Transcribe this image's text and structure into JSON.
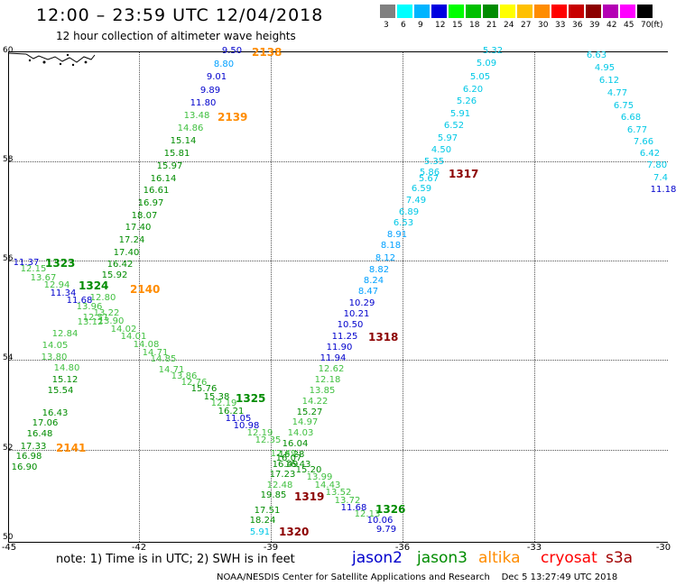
{
  "header": {
    "title": "12:00 – 23:59 UTC 12/04/2018",
    "subtitle": "12 hour collection of altimeter wave heights"
  },
  "legend": {
    "unit": "(ft)",
    "swatches": [
      {
        "label": "3",
        "color": "#808080"
      },
      {
        "label": "6",
        "color": "#00ffff"
      },
      {
        "label": "9",
        "color": "#00b4ff"
      },
      {
        "label": "12",
        "color": "#0000e0"
      },
      {
        "label": "15",
        "color": "#00ff00"
      },
      {
        "label": "18",
        "color": "#00c000"
      },
      {
        "label": "21",
        "color": "#008c00"
      },
      {
        "label": "24",
        "color": "#ffff00"
      },
      {
        "label": "27",
        "color": "#ffc000"
      },
      {
        "label": "30",
        "color": "#ff8c00"
      },
      {
        "label": "33",
        "color": "#ff0000"
      },
      {
        "label": "36",
        "color": "#c80000"
      },
      {
        "label": "39",
        "color": "#8c0000"
      },
      {
        "label": "42",
        "color": "#b400b4"
      },
      {
        "label": "45",
        "color": "#ff00ff"
      },
      {
        "label": "70",
        "color": "#000000"
      }
    ]
  },
  "axes": {
    "lat_labels": [
      "60",
      "58",
      "56",
      "54",
      "52",
      "50"
    ],
    "lon_labels": [
      "-45",
      "-42",
      "-39",
      "-36",
      "-33",
      "-30"
    ]
  },
  "colors": {
    "jason2": "#0000cc",
    "jason3": "#008c00",
    "altika": "#ff8c00",
    "cryosat": "#8c0000",
    "s3a": "#a00000",
    "lt_cyan": "#00c8e6",
    "lt_blue": "#00a0ff",
    "lt_green": "#40c040"
  },
  "orbits": [
    {
      "id": "2138",
      "sat": "altika"
    },
    {
      "id": "2139",
      "sat": "altika"
    },
    {
      "id": "2140",
      "sat": "altika"
    },
    {
      "id": "2141",
      "sat": "altika"
    },
    {
      "id": "1323",
      "sat": "jason3"
    },
    {
      "id": "1324",
      "sat": "jason3"
    },
    {
      "id": "1325",
      "sat": "jason3"
    },
    {
      "id": "1326",
      "sat": "jason3"
    },
    {
      "id": "1317",
      "sat": "cryosat"
    },
    {
      "id": "1318",
      "sat": "cryosat"
    },
    {
      "id": "1319",
      "sat": "cryosat"
    },
    {
      "id": "1320",
      "sat": "cryosat"
    }
  ],
  "readings": [
    {
      "v": "9.50",
      "c": "jason2"
    },
    {
      "v": "8.80",
      "c": "lt_blue"
    },
    {
      "v": "9.01",
      "c": "jason2"
    },
    {
      "v": "9.89",
      "c": "jason2"
    },
    {
      "v": "11.80",
      "c": "jason2"
    },
    {
      "v": "13.48",
      "c": "lt_green"
    },
    {
      "v": "14.86",
      "c": "lt_green"
    },
    {
      "v": "15.14",
      "c": "jason3"
    },
    {
      "v": "15.81",
      "c": "jason3"
    },
    {
      "v": "15.97",
      "c": "jason3"
    },
    {
      "v": "16.14",
      "c": "jason3"
    },
    {
      "v": "16.61",
      "c": "jason3"
    },
    {
      "v": "16.97",
      "c": "jason3"
    },
    {
      "v": "18.07",
      "c": "jason3"
    },
    {
      "v": "17.40",
      "c": "jason3"
    },
    {
      "v": "17.24",
      "c": "jason3"
    },
    {
      "v": "17.40",
      "c": "jason3"
    },
    {
      "v": "16.42",
      "c": "jason3"
    },
    {
      "v": "15.92",
      "c": "jason3"
    },
    {
      "v": "5.32",
      "c": "lt_cyan"
    },
    {
      "v": "5.09",
      "c": "lt_cyan"
    },
    {
      "v": "5.05",
      "c": "lt_cyan"
    },
    {
      "v": "6.20",
      "c": "lt_cyan"
    },
    {
      "v": "5.26",
      "c": "lt_cyan"
    },
    {
      "v": "5.91",
      "c": "lt_cyan"
    },
    {
      "v": "6.52",
      "c": "lt_cyan"
    },
    {
      "v": "5.97",
      "c": "lt_cyan"
    },
    {
      "v": "4.50",
      "c": "lt_cyan"
    },
    {
      "v": "5.35",
      "c": "lt_cyan"
    },
    {
      "v": "5.86",
      "c": "lt_cyan"
    },
    {
      "v": "5.67",
      "c": "lt_cyan"
    },
    {
      "v": "6.59",
      "c": "lt_cyan"
    },
    {
      "v": "7.49",
      "c": "lt_cyan"
    },
    {
      "v": "6.89",
      "c": "lt_cyan"
    },
    {
      "v": "6.53",
      "c": "lt_cyan"
    },
    {
      "v": "8.91",
      "c": "lt_blue"
    },
    {
      "v": "8.18",
      "c": "lt_blue"
    },
    {
      "v": "8.12",
      "c": "lt_blue"
    },
    {
      "v": "8.82",
      "c": "lt_blue"
    },
    {
      "v": "8.24",
      "c": "lt_blue"
    },
    {
      "v": "8.47",
      "c": "lt_blue"
    },
    {
      "v": "10.29",
      "c": "jason2"
    },
    {
      "v": "10.21",
      "c": "jason2"
    },
    {
      "v": "10.50",
      "c": "jason2"
    },
    {
      "v": "11.25",
      "c": "jason2"
    },
    {
      "v": "11.90",
      "c": "jason2"
    },
    {
      "v": "11.94",
      "c": "jason2"
    },
    {
      "v": "12.62",
      "c": "lt_green"
    },
    {
      "v": "12.18",
      "c": "lt_green"
    },
    {
      "v": "13.85",
      "c": "lt_green"
    },
    {
      "v": "14.22",
      "c": "lt_green"
    },
    {
      "v": "15.27",
      "c": "jason3"
    },
    {
      "v": "14.97",
      "c": "lt_green"
    },
    {
      "v": "14.03",
      "c": "lt_green"
    },
    {
      "v": "16.04",
      "c": "jason3"
    },
    {
      "v": "16.28",
      "c": "jason3"
    },
    {
      "v": "16.49",
      "c": "jason3"
    },
    {
      "v": "17.23",
      "c": "jason3"
    },
    {
      "v": "12.48",
      "c": "lt_green"
    },
    {
      "v": "19.85",
      "c": "jason3"
    },
    {
      "v": "17.51",
      "c": "jason3"
    },
    {
      "v": "18.24",
      "c": "jason3"
    },
    {
      "v": "5.91",
      "c": "lt_cyan"
    },
    {
      "v": "6.63",
      "c": "lt_cyan"
    },
    {
      "v": "4.95",
      "c": "lt_cyan"
    },
    {
      "v": "6.12",
      "c": "lt_cyan"
    },
    {
      "v": "4.77",
      "c": "lt_cyan"
    },
    {
      "v": "6.75",
      "c": "lt_cyan"
    },
    {
      "v": "6.68",
      "c": "lt_cyan"
    },
    {
      "v": "6.77",
      "c": "lt_cyan"
    },
    {
      "v": "7.66",
      "c": "lt_cyan"
    },
    {
      "v": "6.42",
      "c": "lt_cyan"
    },
    {
      "v": "7.80",
      "c": "lt_cyan"
    },
    {
      "v": "7.4",
      "c": "lt_cyan"
    },
    {
      "v": "11.18",
      "c": "jason2"
    },
    {
      "v": "11.37",
      "c": "jason2"
    },
    {
      "v": "12.15",
      "c": "lt_green"
    },
    {
      "v": "13.67",
      "c": "lt_green"
    },
    {
      "v": "12.94",
      "c": "lt_green"
    },
    {
      "v": "11.34",
      "c": "jason2"
    },
    {
      "v": "11.68",
      "c": "jason2"
    },
    {
      "v": "13.96",
      "c": "lt_green"
    },
    {
      "v": "12.80",
      "c": "lt_green"
    },
    {
      "v": "13.22",
      "c": "lt_green"
    },
    {
      "v": "12.51",
      "c": "lt_green"
    },
    {
      "v": "13.90",
      "c": "lt_green"
    },
    {
      "v": "13.12",
      "c": "lt_green"
    },
    {
      "v": "14.02",
      "c": "lt_green"
    },
    {
      "v": "12.84",
      "c": "lt_green"
    },
    {
      "v": "14.01",
      "c": "lt_green"
    },
    {
      "v": "14.05",
      "c": "lt_green"
    },
    {
      "v": "14.08",
      "c": "lt_green"
    },
    {
      "v": "14.71",
      "c": "lt_green"
    },
    {
      "v": "13.80",
      "c": "lt_green"
    },
    {
      "v": "14.85",
      "c": "lt_green"
    },
    {
      "v": "14.80",
      "c": "lt_green"
    },
    {
      "v": "14.71",
      "c": "lt_green"
    },
    {
      "v": "13.86",
      "c": "lt_green"
    },
    {
      "v": "15.12",
      "c": "jason3"
    },
    {
      "v": "12.76",
      "c": "lt_green"
    },
    {
      "v": "15.54",
      "c": "jason3"
    },
    {
      "v": "15.76",
      "c": "jason3"
    },
    {
      "v": "15.38",
      "c": "jason3"
    },
    {
      "v": "12.19",
      "c": "lt_green"
    },
    {
      "v": "16.43",
      "c": "jason3"
    },
    {
      "v": "16.21",
      "c": "jason3"
    },
    {
      "v": "11.05",
      "c": "jason2"
    },
    {
      "v": "17.06",
      "c": "jason3"
    },
    {
      "v": "10.98",
      "c": "jason2"
    },
    {
      "v": "16.48",
      "c": "jason3"
    },
    {
      "v": "12.19",
      "c": "lt_green"
    },
    {
      "v": "17.33",
      "c": "jason3"
    },
    {
      "v": "12.35",
      "c": "lt_green"
    },
    {
      "v": "16.98",
      "c": "jason3"
    },
    {
      "v": "12.49",
      "c": "lt_green"
    },
    {
      "v": "16.90",
      "c": "jason3"
    },
    {
      "v": "16.07",
      "c": "jason3"
    },
    {
      "v": "16.43",
      "c": "jason3"
    },
    {
      "v": "15.20",
      "c": "jason3"
    },
    {
      "v": "13.99",
      "c": "lt_green"
    },
    {
      "v": "14.43",
      "c": "lt_green"
    },
    {
      "v": "13.52",
      "c": "lt_green"
    },
    {
      "v": "13.72",
      "c": "lt_green"
    },
    {
      "v": "11.68",
      "c": "jason2"
    },
    {
      "v": "12.13",
      "c": "lt_green"
    },
    {
      "v": "10.06",
      "c": "jason2"
    },
    {
      "v": "9.79",
      "c": "jason2"
    }
  ],
  "footer": {
    "note": "note:  1) Time is in UTC;  2) SWH is in feet",
    "sat_labels": [
      {
        "name": "jason2",
        "color": "#0000cc"
      },
      {
        "name": "jason3",
        "color": "#008c00"
      },
      {
        "name": "altika",
        "color": "#ff8c00"
      },
      {
        "name": "cryosat",
        "color": "#ff0000"
      },
      {
        "name": "s3a",
        "color": "#a00000"
      }
    ],
    "credit": "NOAA/NESDIS Center for Satellite Applications and Research",
    "timestamp": "Dec  5 13:27:49 UTC 2018"
  }
}
